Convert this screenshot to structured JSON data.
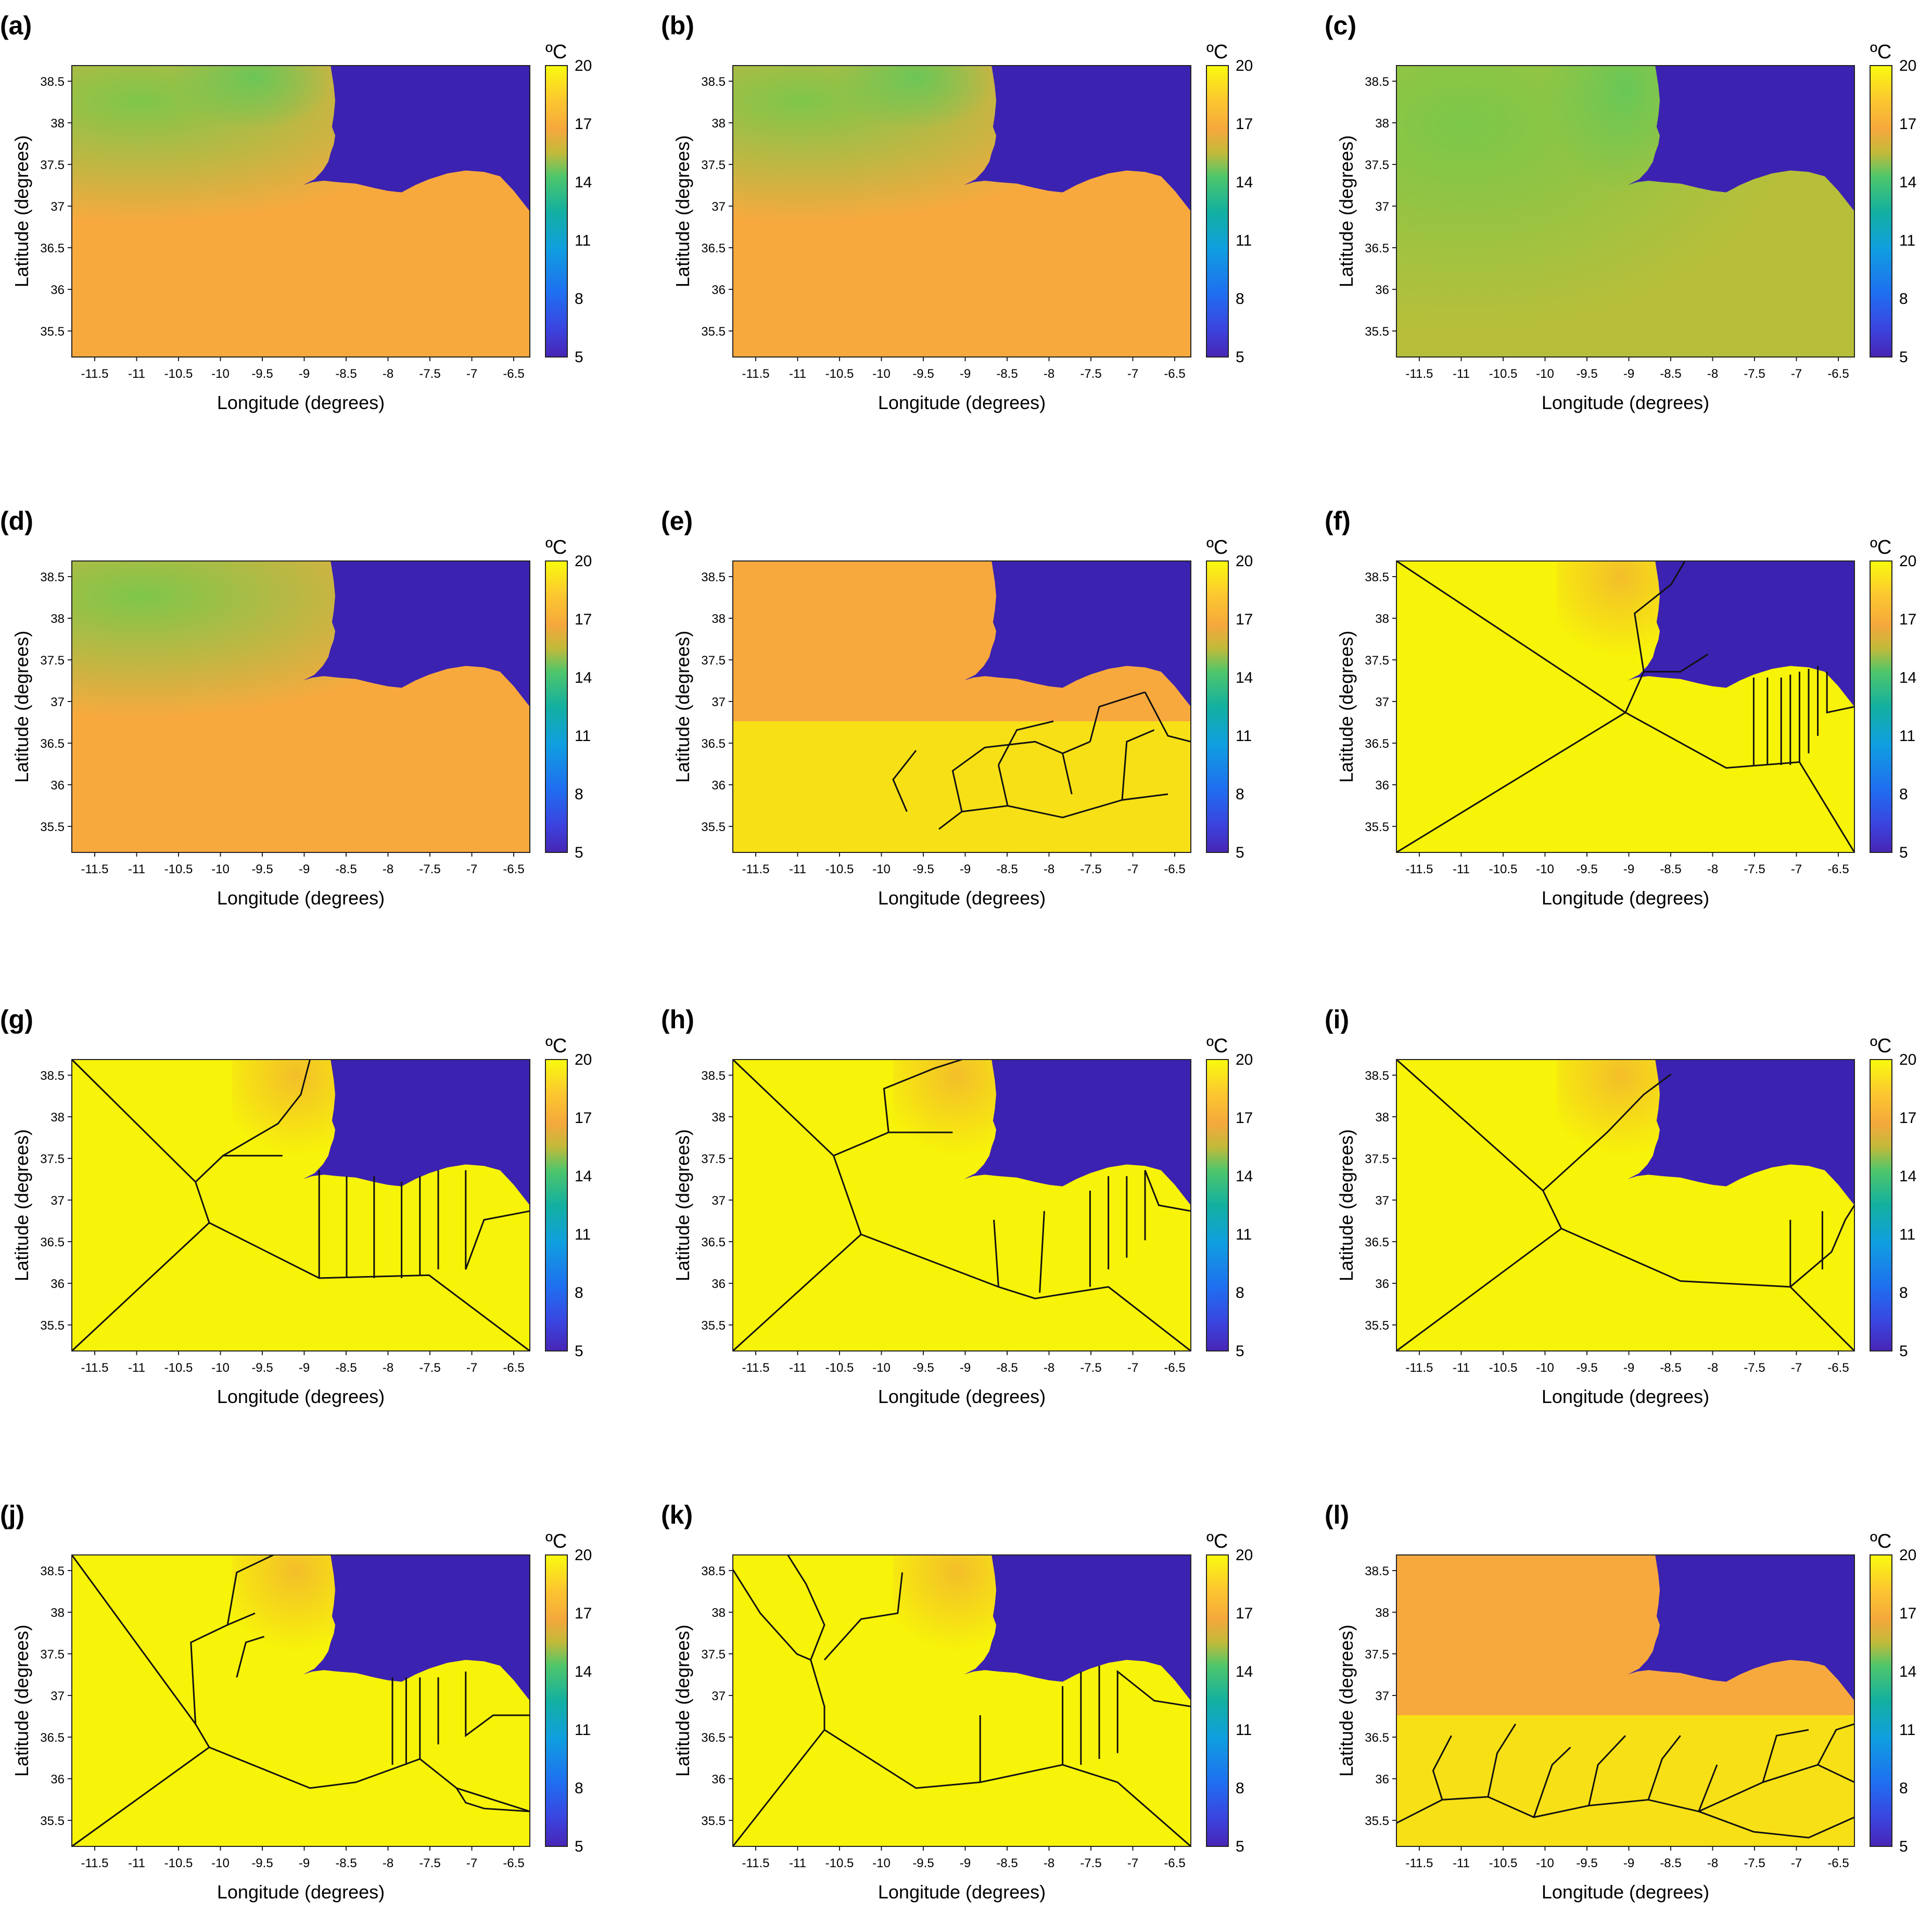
{
  "figure": {
    "x_label": "Longitude (degrees)",
    "y_label": "Latitude (degrees)",
    "unit_label": "ºC",
    "x_ticks": [
      "-11.5",
      "-11",
      "-10.5",
      "-10",
      "-9.5",
      "-9",
      "-8.5",
      "-8",
      "-7.5",
      "-7",
      "-6.5"
    ],
    "y_ticks": [
      "38.5",
      "38",
      "37.5",
      "37",
      "36.5",
      "36",
      "35.5"
    ],
    "colorbar_ticks": [
      "20",
      "17",
      "14",
      "11",
      "8",
      "5"
    ],
    "panels": [
      {
        "id": "a",
        "label": "(a)"
      },
      {
        "id": "b",
        "label": "(b)"
      },
      {
        "id": "c",
        "label": "(c)"
      },
      {
        "id": "d",
        "label": "(d)"
      },
      {
        "id": "e",
        "label": "(e)"
      },
      {
        "id": "f",
        "label": "(f)"
      },
      {
        "id": "g",
        "label": "(g)"
      },
      {
        "id": "h",
        "label": "(h)"
      },
      {
        "id": "i",
        "label": "(i)"
      },
      {
        "id": "j",
        "label": "(j)"
      },
      {
        "id": "k",
        "label": "(k)"
      },
      {
        "id": "l",
        "label": "(l)"
      }
    ]
  },
  "colors": {
    "land": "#3c22b0",
    "sea_warm": "#f8a93e",
    "sea_mid": "#b7bf3a",
    "sea_cool": "#78c84a",
    "segment_fill": "#f7f309",
    "boundary": "#111111",
    "colormap": [
      "#f9fb0e",
      "#fcb230",
      "#ecb83b",
      "#8cc63f",
      "#19b18a",
      "#12a8d6",
      "#1a7ef0",
      "#3957f0",
      "#4423b8"
    ]
  }
}
